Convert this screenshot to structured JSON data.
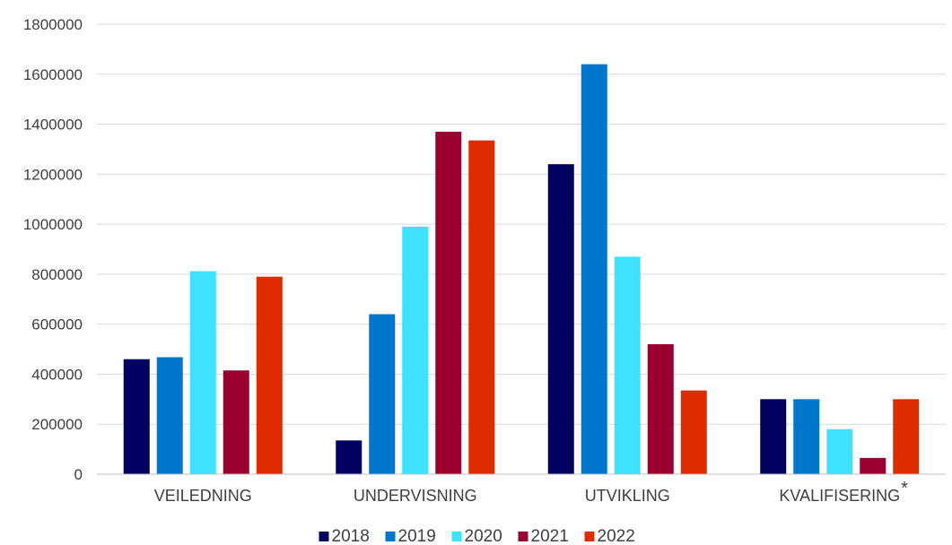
{
  "chart_data": {
    "type": "bar",
    "categories": [
      "VEILEDNING",
      "UNDERVISNING",
      "UTVIKLING",
      "KVALIFISERING"
    ],
    "category_footnote_marks": [
      "",
      "",
      "",
      "*"
    ],
    "series": [
      {
        "name": "2018",
        "color": "#00005e",
        "values": [
          460000,
          135000,
          1240000,
          300000
        ]
      },
      {
        "name": "2019",
        "color": "#0077cc",
        "values": [
          468000,
          640000,
          1640000,
          300000
        ]
      },
      {
        "name": "2020",
        "color": "#3ee1ff",
        "values": [
          812000,
          990000,
          870000,
          180000
        ]
      },
      {
        "name": "2021",
        "color": "#99002f",
        "values": [
          415000,
          1370000,
          520000,
          65000
        ]
      },
      {
        "name": "2022",
        "color": "#dd2c00",
        "values": [
          790000,
          1335000,
          335000,
          300000
        ]
      }
    ],
    "ylim": [
      0,
      1800000
    ],
    "yticks": [
      0,
      200000,
      400000,
      600000,
      800000,
      1000000,
      1200000,
      1400000,
      1600000,
      1800000
    ],
    "grid": true,
    "legend_position": "bottom",
    "title": "",
    "xlabel": "",
    "ylabel": ""
  }
}
